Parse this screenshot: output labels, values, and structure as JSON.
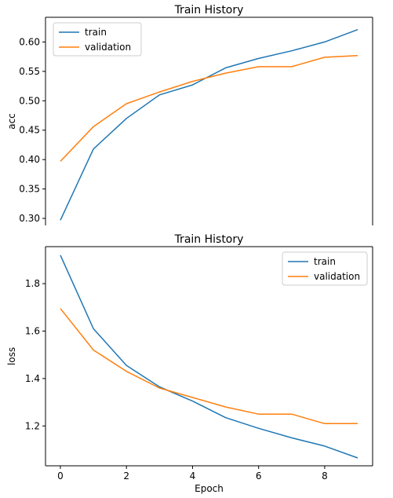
{
  "chart_data": [
    {
      "type": "line",
      "title": "Train History",
      "xlabel": "",
      "ylabel": "acc",
      "x": [
        0,
        1,
        2,
        3,
        4,
        5,
        6,
        7,
        8,
        9
      ],
      "xlim": [
        -0.45,
        9.45
      ],
      "ylim": [
        0.288,
        0.642
      ],
      "xticks_visible": false,
      "yticks": [
        0.3,
        0.35,
        0.4,
        0.45,
        0.5,
        0.55,
        0.6
      ],
      "ytick_labels": [
        "0.30",
        "0.35",
        "0.40",
        "0.45",
        "0.50",
        "0.55",
        "0.60"
      ],
      "legend": "top-left",
      "grid": false,
      "series": [
        {
          "name": "train",
          "color": "#1f77b4",
          "values": [
            0.297,
            0.418,
            0.47,
            0.51,
            0.527,
            0.556,
            0.572,
            0.585,
            0.6,
            0.621
          ]
        },
        {
          "name": "validation",
          "color": "#ff7f0e",
          "values": [
            0.397,
            0.456,
            0.495,
            0.515,
            0.533,
            0.547,
            0.558,
            0.558,
            0.574,
            0.577
          ]
        }
      ]
    },
    {
      "type": "line",
      "title": "Train History",
      "xlabel": "Epoch",
      "ylabel": "loss",
      "x": [
        0,
        1,
        2,
        3,
        4,
        5,
        6,
        7,
        8,
        9
      ],
      "xlim": [
        -0.45,
        9.45
      ],
      "ylim": [
        1.032,
        1.956
      ],
      "xticks": [
        0,
        2,
        4,
        6,
        8
      ],
      "xtick_labels": [
        "0",
        "2",
        "4",
        "6",
        "8"
      ],
      "yticks": [
        1.2,
        1.4,
        1.6,
        1.8
      ],
      "ytick_labels": [
        "1.2",
        "1.4",
        "1.6",
        "1.8"
      ],
      "legend": "top-right",
      "grid": false,
      "series": [
        {
          "name": "train",
          "color": "#1f77b4",
          "values": [
            1.92,
            1.61,
            1.455,
            1.365,
            1.305,
            1.235,
            1.19,
            1.15,
            1.115,
            1.065
          ]
        },
        {
          "name": "validation",
          "color": "#ff7f0e",
          "values": [
            1.695,
            1.52,
            1.43,
            1.36,
            1.32,
            1.28,
            1.25,
            1.25,
            1.21,
            1.21
          ]
        }
      ]
    }
  ]
}
